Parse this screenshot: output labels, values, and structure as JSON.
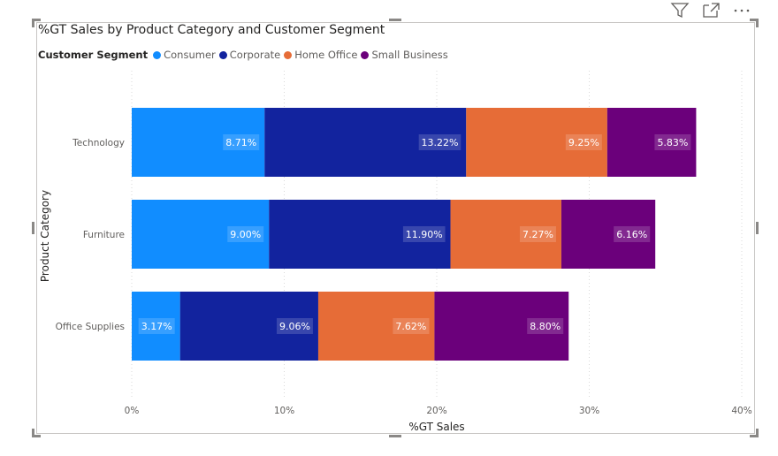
{
  "toolbar": {
    "filter_icon": "filter-icon",
    "focus_icon": "focus-mode-icon",
    "more_icon": "more-options-icon"
  },
  "chart_data": {
    "type": "bar",
    "orientation": "horizontal",
    "stacked": true,
    "title": "%GT Sales by Product Category and Customer Segment",
    "legend_title": "Customer Segment",
    "legend_position": "top-left",
    "xlabel": "%GT Sales",
    "ylabel": "Product Category",
    "xlim": [
      0,
      40
    ],
    "xticks": [
      0,
      10,
      20,
      30,
      40
    ],
    "xtick_labels": [
      "0%",
      "10%",
      "20%",
      "30%",
      "40%"
    ],
    "grid": "vertical-dotted",
    "categories": [
      "Technology",
      "Furniture",
      "Office Supplies"
    ],
    "series": [
      {
        "name": "Consumer",
        "color": "#118DFF",
        "values": [
          8.71,
          9.0,
          3.17
        ],
        "labels": [
          "8.71%",
          "9.00%",
          "3.17%"
        ]
      },
      {
        "name": "Corporate",
        "color": "#12239E",
        "values": [
          13.22,
          11.9,
          9.06
        ],
        "labels": [
          "13.22%",
          "11.90%",
          "9.06%"
        ]
      },
      {
        "name": "Home Office",
        "color": "#E66C37",
        "values": [
          9.25,
          7.27,
          7.62
        ],
        "labels": [
          "9.25%",
          "7.27%",
          "7.62%"
        ]
      },
      {
        "name": "Small Business",
        "color": "#6B007B",
        "values": [
          5.83,
          6.16,
          8.8
        ],
        "labels": [
          "5.83%",
          "6.16%",
          "8.80%"
        ]
      }
    ]
  }
}
